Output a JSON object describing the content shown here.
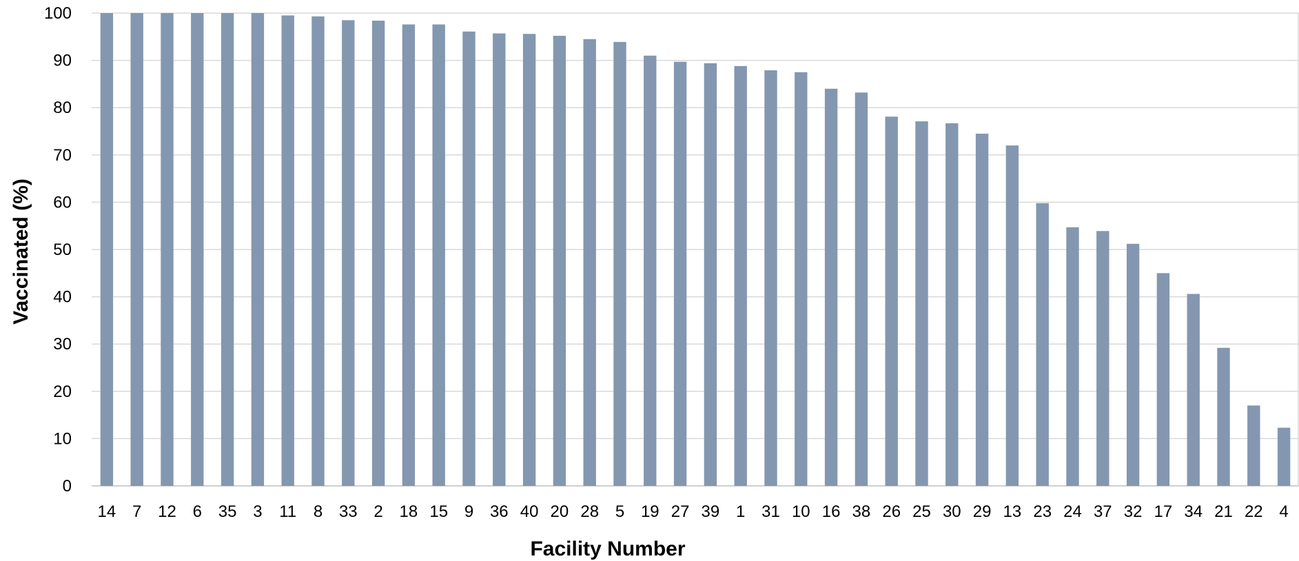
{
  "chart_data": {
    "type": "bar",
    "title": "",
    "xlabel": "Facility Number",
    "ylabel": "Vaccinated (%)",
    "ylim": [
      0,
      100
    ],
    "yticks": [
      0,
      10,
      20,
      30,
      40,
      50,
      60,
      70,
      80,
      90,
      100
    ],
    "grid": true,
    "categories": [
      "14",
      "7",
      "12",
      "6",
      "35",
      "3",
      "11",
      "8",
      "33",
      "2",
      "18",
      "15",
      "9",
      "36",
      "40",
      "20",
      "28",
      "5",
      "19",
      "27",
      "39",
      "1",
      "31",
      "10",
      "16",
      "38",
      "26",
      "25",
      "30",
      "29",
      "13",
      "23",
      "24",
      "37",
      "32",
      "17",
      "34",
      "21",
      "22",
      "4"
    ],
    "values": [
      100,
      100,
      100,
      100,
      100,
      100,
      99.5,
      99.3,
      98.5,
      98.4,
      97.6,
      97.6,
      96.1,
      95.7,
      95.6,
      95.2,
      94.5,
      93.9,
      91.0,
      89.7,
      89.4,
      88.8,
      87.9,
      87.5,
      84.0,
      83.2,
      78.1,
      77.1,
      76.7,
      74.5,
      72.0,
      59.8,
      54.7,
      53.9,
      51.2,
      45.0,
      40.6,
      29.2,
      17.0,
      12.3
    ],
    "colors": {
      "bar": "#8497b0",
      "grid": "#d9d9d9"
    }
  }
}
